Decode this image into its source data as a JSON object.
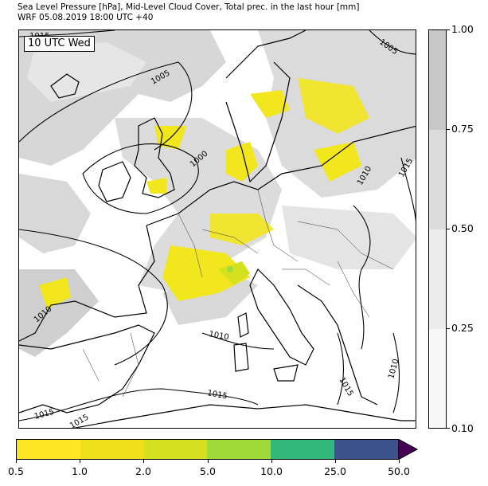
{
  "title": {
    "line1": "Sea Level Pressure [hPa], Mid-Level Cloud Cover, Total prec. in the last hour [mm]",
    "line2": "WRF 05.08.2019 18:00 UTC +40"
  },
  "map": {
    "time_label": "10 UTC Wed",
    "isobar_labels": [
      "1015",
      "1005",
      "1005",
      "1000",
      "1010",
      "1015",
      "1010",
      "1010",
      "1015",
      "1015",
      "1010",
      "1015",
      "1015"
    ]
  },
  "cloud_colorbar": {
    "ticks": [
      "1.00",
      "0.75",
      "0.50",
      "0.25",
      "0.10"
    ],
    "colors": [
      "#c8c8c8",
      "#dcdcdc",
      "#ececec",
      "#f7f7f7"
    ]
  },
  "precip_colorbar": {
    "ticks": [
      "0.5",
      "1.0",
      "2.0",
      "5.0",
      "10.0",
      "25.0",
      "50.0"
    ],
    "colors": [
      "#fde725",
      "#f0e01c",
      "#d4e11e",
      "#a0da39",
      "#31b87a",
      "#3b528b"
    ],
    "extend_color": "#440154"
  }
}
